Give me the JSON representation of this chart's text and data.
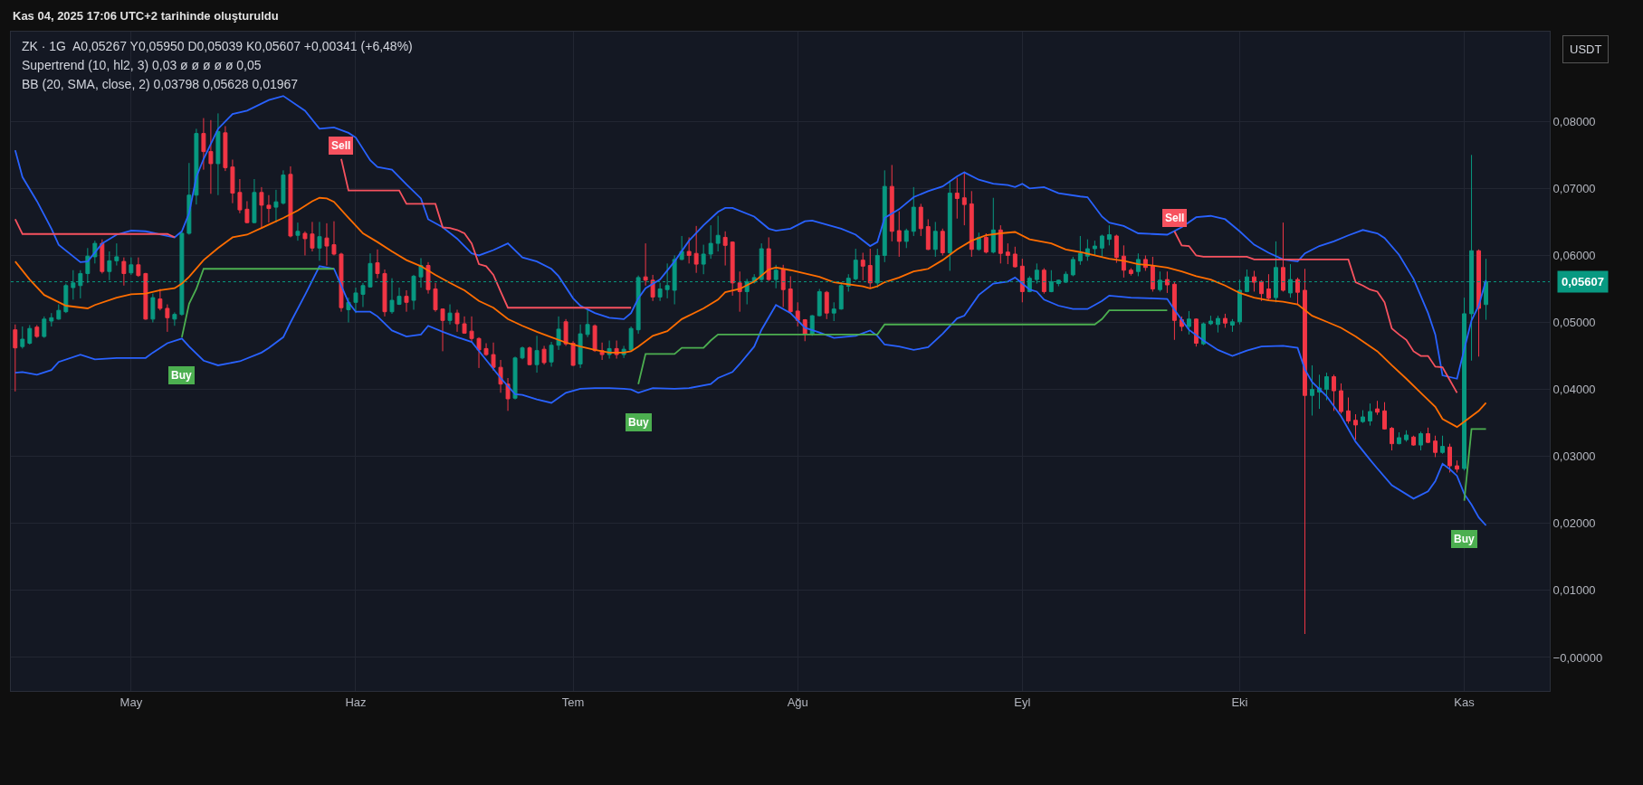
{
  "chart_data": {
    "type": "candlestick",
    "ylabel": "USDT",
    "annotations": [
      "Kas 04, 2025 17:06 UTC+2 tarihinde oluşturuldu",
      "ZK · 1G  A0,05267 Y0,05950 D0,05039 K0,05607 +0,00341 (+6,48%)",
      "Supertrend (10, hl2, 3) 0,03 ø ø ø ø ø 0,05",
      "BB (20, SMA, close, 2) 0,03798 0,05628 0,01967",
      {
        "text": "Buy",
        "y": 0.0478
      },
      {
        "text": "Sell",
        "y": 0.0744
      },
      {
        "text": "Buy",
        "y": 0.0408
      },
      {
        "text": "Sell",
        "y": 0.0636
      },
      {
        "text": "Buy",
        "y": 0.0234
      }
    ],
    "categories": [
      null,
      null,
      null,
      null,
      null,
      null,
      null,
      null,
      null,
      null,
      null,
      null,
      null,
      null,
      null,
      null,
      "May",
      null,
      null,
      null,
      null,
      null,
      null,
      null,
      null,
      null,
      null,
      null,
      null,
      null,
      null,
      null,
      null,
      null,
      null,
      null,
      null,
      null,
      null,
      null,
      null,
      null,
      null,
      null,
      null,
      null,
      null,
      "Haz",
      null,
      null,
      null,
      null,
      null,
      null,
      null,
      null,
      null,
      null,
      null,
      null,
      null,
      null,
      null,
      null,
      null,
      null,
      null,
      null,
      null,
      null,
      null,
      null,
      null,
      null,
      null,
      null,
      null,
      "Tem",
      null,
      null,
      null,
      null,
      null,
      null,
      null,
      null,
      null,
      null,
      null,
      null,
      null,
      null,
      null,
      null,
      null,
      null,
      null,
      null,
      null,
      null,
      null,
      null,
      null,
      null,
      null,
      null,
      null,
      null,
      "Ağu",
      null,
      null,
      null,
      null,
      null,
      null,
      null,
      null,
      null,
      null,
      null,
      null,
      null,
      null,
      null,
      null,
      null,
      null,
      null,
      null,
      null,
      null,
      null,
      null,
      null,
      null,
      null,
      null,
      null,
      null,
      "Eyl",
      null,
      null,
      null,
      null,
      null,
      null,
      null,
      null,
      null,
      null,
      null,
      null,
      null,
      null,
      null,
      null,
      null,
      null,
      null,
      null,
      null,
      null,
      null,
      null,
      null,
      null,
      null,
      null,
      null,
      "Eki",
      null,
      null,
      null,
      null,
      null,
      null,
      null,
      null,
      null,
      null,
      null,
      null,
      null,
      null,
      null,
      null,
      null,
      null,
      null,
      null,
      null,
      null,
      null,
      null,
      null,
      null,
      null,
      null,
      null,
      null,
      "Kas",
      null,
      null,
      null
    ],
    "ohlc": [
      [
        0.0489,
        0.0497,
        0.0397,
        0.0462
      ],
      [
        0.0464,
        0.0494,
        0.0461,
        0.0475
      ],
      [
        0.0469,
        0.0496,
        0.0467,
        0.0491
      ],
      [
        0.0493,
        0.0496,
        0.0477,
        0.0479
      ],
      [
        0.0479,
        0.0509,
        0.0477,
        0.0505
      ],
      [
        0.0502,
        0.0514,
        0.0494,
        0.0507
      ],
      [
        0.0505,
        0.0527,
        0.0504,
        0.0518
      ],
      [
        0.0516,
        0.0558,
        0.0514,
        0.0555
      ],
      [
        0.0552,
        0.0578,
        0.0534,
        0.0559
      ],
      [
        0.0555,
        0.0578,
        0.0536,
        0.0573
      ],
      [
        0.0573,
        0.0611,
        0.0559,
        0.0599
      ],
      [
        0.0598,
        0.0622,
        0.0588,
        0.0618
      ],
      [
        0.0618,
        0.0624,
        0.0573,
        0.0576
      ],
      [
        0.0576,
        0.0606,
        0.0563,
        0.0592
      ],
      [
        0.0592,
        0.0618,
        0.0585,
        0.0598
      ],
      [
        0.0591,
        0.0597,
        0.0555,
        0.0573
      ],
      [
        0.0574,
        0.0597,
        0.0571,
        0.0586
      ],
      [
        0.0586,
        0.0597,
        0.0568,
        0.057
      ],
      [
        0.0573,
        0.0574,
        0.0504,
        0.0505
      ],
      [
        0.0505,
        0.0543,
        0.05,
        0.0537
      ],
      [
        0.0535,
        0.055,
        0.0518,
        0.0521
      ],
      [
        0.0521,
        0.0527,
        0.0486,
        0.0507
      ],
      [
        0.0505,
        0.0515,
        0.0495,
        0.0512
      ],
      [
        0.0512,
        0.0636,
        0.051,
        0.0633
      ],
      [
        0.0633,
        0.0738,
        0.0631,
        0.069
      ],
      [
        0.069,
        0.0789,
        0.0676,
        0.0782
      ],
      [
        0.0782,
        0.0805,
        0.0728,
        0.0755
      ],
      [
        0.0755,
        0.0802,
        0.0692,
        0.0737
      ],
      [
        0.0737,
        0.0812,
        0.069,
        0.0785
      ],
      [
        0.0783,
        0.0793,
        0.0726,
        0.0731
      ],
      [
        0.0732,
        0.0743,
        0.0678,
        0.0693
      ],
      [
        0.0694,
        0.0714,
        0.0663,
        0.0668
      ],
      [
        0.0669,
        0.0681,
        0.0648,
        0.0649
      ],
      [
        0.0649,
        0.0714,
        0.0648,
        0.0694
      ],
      [
        0.0694,
        0.0702,
        0.064,
        0.0675
      ],
      [
        0.0675,
        0.069,
        0.0649,
        0.067
      ],
      [
        0.0672,
        0.0698,
        0.0649,
        0.068
      ],
      [
        0.0678,
        0.0727,
        0.0676,
        0.072
      ],
      [
        0.0721,
        0.0733,
        0.0627,
        0.0629
      ],
      [
        0.063,
        0.0649,
        0.0622,
        0.0636
      ],
      [
        0.0633,
        0.0636,
        0.06,
        0.0625
      ],
      [
        0.0632,
        0.065,
        0.0606,
        0.0611
      ],
      [
        0.0611,
        0.065,
        0.0592,
        0.0628
      ],
      [
        0.0626,
        0.0648,
        0.0585,
        0.0614
      ],
      [
        0.0616,
        0.0651,
        0.06,
        0.0602
      ],
      [
        0.0602,
        0.0604,
        0.0516,
        0.0522
      ],
      [
        0.0519,
        0.0537,
        0.05,
        0.053
      ],
      [
        0.053,
        0.0552,
        0.0514,
        0.0544
      ],
      [
        0.0542,
        0.0559,
        0.0523,
        0.0555
      ],
      [
        0.0553,
        0.0603,
        0.0552,
        0.0588
      ],
      [
        0.0589,
        0.0609,
        0.0566,
        0.0573
      ],
      [
        0.0573,
        0.0579,
        0.0509,
        0.0516
      ],
      [
        0.0516,
        0.0566,
        0.0513,
        0.0533
      ],
      [
        0.0527,
        0.0552,
        0.0526,
        0.0539
      ],
      [
        0.0539,
        0.0548,
        0.0516,
        0.053
      ],
      [
        0.0533,
        0.0571,
        0.0519,
        0.0569
      ],
      [
        0.0568,
        0.0596,
        0.0552,
        0.0585
      ],
      [
        0.0585,
        0.059,
        0.0543,
        0.0549
      ],
      [
        0.055,
        0.0559,
        0.0516,
        0.0519
      ],
      [
        0.052,
        0.0521,
        0.0457,
        0.0503
      ],
      [
        0.0503,
        0.0527,
        0.0497,
        0.0514
      ],
      [
        0.0514,
        0.0519,
        0.0486,
        0.0498
      ],
      [
        0.0498,
        0.0509,
        0.0483,
        0.0484
      ],
      [
        0.0487,
        0.0509,
        0.0471,
        0.0476
      ],
      [
        0.0476,
        0.0478,
        0.0432,
        0.0459
      ],
      [
        0.0461,
        0.0469,
        0.045,
        0.0452
      ],
      [
        0.0452,
        0.047,
        0.0428,
        0.0433
      ],
      [
        0.0433,
        0.0444,
        0.0395,
        0.0408
      ],
      [
        0.0408,
        0.0417,
        0.0368,
        0.0386
      ],
      [
        0.0387,
        0.0449,
        0.0385,
        0.0447
      ],
      [
        0.0447,
        0.0464,
        0.0445,
        0.0462
      ],
      [
        0.0462,
        0.0464,
        0.0436,
        0.0437
      ],
      [
        0.0437,
        0.048,
        0.0425,
        0.0458
      ],
      [
        0.046,
        0.0465,
        0.0437,
        0.044
      ],
      [
        0.0441,
        0.0471,
        0.0434,
        0.0466
      ],
      [
        0.0466,
        0.0509,
        0.0459,
        0.049
      ],
      [
        0.0501,
        0.0505,
        0.0465,
        0.0468
      ],
      [
        0.0469,
        0.0472,
        0.0435,
        0.0436
      ],
      [
        0.0438,
        0.0497,
        0.0432,
        0.0483
      ],
      [
        0.0482,
        0.0519,
        0.0478,
        0.0497
      ],
      [
        0.0495,
        0.0497,
        0.0456,
        0.0458
      ],
      [
        0.0458,
        0.047,
        0.0444,
        0.0452
      ],
      [
        0.0452,
        0.0473,
        0.0446,
        0.0461
      ],
      [
        0.0461,
        0.0473,
        0.0446,
        0.0452
      ],
      [
        0.0452,
        0.0465,
        0.0447,
        0.046
      ],
      [
        0.0459,
        0.0494,
        0.0458,
        0.0491
      ],
      [
        0.0489,
        0.057,
        0.0483,
        0.0567
      ],
      [
        0.0568,
        0.0618,
        0.0555,
        0.0563
      ],
      [
        0.0563,
        0.0571,
        0.0532,
        0.0538
      ],
      [
        0.0538,
        0.0559,
        0.0532,
        0.055
      ],
      [
        0.0549,
        0.0588,
        0.0536,
        0.0555
      ],
      [
        0.0548,
        0.06,
        0.0527,
        0.0594
      ],
      [
        0.0594,
        0.0629,
        0.0593,
        0.0606
      ],
      [
        0.0606,
        0.0627,
        0.0588,
        0.06
      ],
      [
        0.0603,
        0.0644,
        0.0574,
        0.0587
      ],
      [
        0.0587,
        0.0616,
        0.0572,
        0.0602
      ],
      [
        0.0602,
        0.0645,
        0.0595,
        0.0618
      ],
      [
        0.0618,
        0.0659,
        0.0606,
        0.063
      ],
      [
        0.0627,
        0.0636,
        0.0585,
        0.0615
      ],
      [
        0.062,
        0.0621,
        0.054,
        0.0559
      ],
      [
        0.0559,
        0.0576,
        0.0516,
        0.0546
      ],
      [
        0.0546,
        0.0565,
        0.0527,
        0.0561
      ],
      [
        0.056,
        0.0572,
        0.0558,
        0.0567
      ],
      [
        0.0564,
        0.0618,
        0.0562,
        0.061
      ],
      [
        0.061,
        0.0627,
        0.0562,
        0.0564
      ],
      [
        0.0564,
        0.0586,
        0.0551,
        0.0578
      ],
      [
        0.0579,
        0.0586,
        0.0523,
        0.0549
      ],
      [
        0.055,
        0.0569,
        0.0514,
        0.0516
      ],
      [
        0.0517,
        0.053,
        0.0494,
        0.0503
      ],
      [
        0.0504,
        0.0505,
        0.0472,
        0.0483
      ],
      [
        0.0483,
        0.0511,
        0.048,
        0.051
      ],
      [
        0.051,
        0.055,
        0.0509,
        0.0546
      ],
      [
        0.0545,
        0.0547,
        0.0505,
        0.0514
      ],
      [
        0.0514,
        0.053,
        0.0502,
        0.052
      ],
      [
        0.052,
        0.056,
        0.0519,
        0.0555
      ],
      [
        0.0554,
        0.0572,
        0.0546,
        0.0566
      ],
      [
        0.0565,
        0.061,
        0.0563,
        0.0593
      ],
      [
        0.0593,
        0.0604,
        0.0563,
        0.0584
      ],
      [
        0.0585,
        0.061,
        0.0551,
        0.0559
      ],
      [
        0.0559,
        0.061,
        0.0552,
        0.06
      ],
      [
        0.06,
        0.0727,
        0.059,
        0.0703
      ],
      [
        0.0703,
        0.0735,
        0.0621,
        0.0636
      ],
      [
        0.0637,
        0.0666,
        0.0598,
        0.0621
      ],
      [
        0.0621,
        0.064,
        0.0611,
        0.0637
      ],
      [
        0.0636,
        0.0702,
        0.0629,
        0.0672
      ],
      [
        0.0672,
        0.0677,
        0.0629,
        0.064
      ],
      [
        0.0643,
        0.0654,
        0.0608,
        0.0609
      ],
      [
        0.0609,
        0.065,
        0.0598,
        0.0636
      ],
      [
        0.0636,
        0.064,
        0.06,
        0.0604
      ],
      [
        0.0604,
        0.0712,
        0.0577,
        0.0693
      ],
      [
        0.0693,
        0.0716,
        0.0655,
        0.0685
      ],
      [
        0.0686,
        0.0725,
        0.0645,
        0.0676
      ],
      [
        0.0677,
        0.0696,
        0.0598,
        0.0609
      ],
      [
        0.0609,
        0.0634,
        0.0607,
        0.0627
      ],
      [
        0.0627,
        0.0633,
        0.0603,
        0.0605
      ],
      [
        0.0605,
        0.0686,
        0.0603,
        0.0638
      ],
      [
        0.0638,
        0.0645,
        0.0588,
        0.0603
      ],
      [
        0.0605,
        0.0618,
        0.0587,
        0.06
      ],
      [
        0.0602,
        0.0613,
        0.0582,
        0.0583
      ],
      [
        0.0584,
        0.0595,
        0.053,
        0.0546
      ],
      [
        0.0546,
        0.0569,
        0.0545,
        0.0566
      ],
      [
        0.0564,
        0.0588,
        0.0558,
        0.0578
      ],
      [
        0.0578,
        0.0581,
        0.0543,
        0.0546
      ],
      [
        0.0546,
        0.0578,
        0.0545,
        0.0561
      ],
      [
        0.0558,
        0.0564,
        0.0554,
        0.0563
      ],
      [
        0.056,
        0.0576,
        0.0559,
        0.0572
      ],
      [
        0.0571,
        0.0598,
        0.0569,
        0.0594
      ],
      [
        0.0592,
        0.0629,
        0.0586,
        0.0603
      ],
      [
        0.0599,
        0.0624,
        0.0592,
        0.061
      ],
      [
        0.061,
        0.0622,
        0.06,
        0.0614
      ],
      [
        0.0611,
        0.0631,
        0.0598,
        0.0629
      ],
      [
        0.0624,
        0.0645,
        0.0615,
        0.0631
      ],
      [
        0.0629,
        0.0631,
        0.0589,
        0.0597
      ],
      [
        0.0599,
        0.0615,
        0.0567,
        0.0578
      ],
      [
        0.0578,
        0.0581,
        0.057,
        0.0573
      ],
      [
        0.0576,
        0.0603,
        0.0569,
        0.0594
      ],
      [
        0.0594,
        0.06,
        0.0577,
        0.0582
      ],
      [
        0.0584,
        0.0598,
        0.0546,
        0.055
      ],
      [
        0.0549,
        0.0576,
        0.0546,
        0.0563
      ],
      [
        0.0564,
        0.0576,
        0.0544,
        0.0556
      ],
      [
        0.0557,
        0.0561,
        0.0474,
        0.0503
      ],
      [
        0.0504,
        0.0509,
        0.0487,
        0.0494
      ],
      [
        0.0494,
        0.0517,
        0.0482,
        0.0505
      ],
      [
        0.0505,
        0.0506,
        0.0464,
        0.0469
      ],
      [
        0.0468,
        0.05,
        0.0466,
        0.0498
      ],
      [
        0.0498,
        0.051,
        0.0496,
        0.0502
      ],
      [
        0.0497,
        0.051,
        0.0485,
        0.0506
      ],
      [
        0.0506,
        0.0513,
        0.0492,
        0.0499
      ],
      [
        0.0496,
        0.0505,
        0.0486,
        0.0501
      ],
      [
        0.0501,
        0.0564,
        0.0497,
        0.0548
      ],
      [
        0.0546,
        0.0579,
        0.0545,
        0.0568
      ],
      [
        0.0568,
        0.0577,
        0.0546,
        0.056
      ],
      [
        0.0561,
        0.0563,
        0.0532,
        0.0543
      ],
      [
        0.055,
        0.0572,
        0.0534,
        0.0536
      ],
      [
        0.0537,
        0.0621,
        0.053,
        0.0582
      ],
      [
        0.0582,
        0.0649,
        0.0546,
        0.0548
      ],
      [
        0.0544,
        0.0587,
        0.0537,
        0.0564
      ],
      [
        0.0564,
        0.0567,
        0.0526,
        0.0545
      ],
      [
        0.0548,
        0.058,
        0.0035,
        0.0391
      ],
      [
        0.0391,
        0.0436,
        0.0361,
        0.04
      ],
      [
        0.0396,
        0.0422,
        0.0371,
        0.0402
      ],
      [
        0.04,
        0.0425,
        0.0384,
        0.0419
      ],
      [
        0.0419,
        0.0422,
        0.0368,
        0.0398
      ],
      [
        0.0398,
        0.0409,
        0.0364,
        0.0367
      ],
      [
        0.0368,
        0.0388,
        0.0349,
        0.0353
      ],
      [
        0.0354,
        0.0363,
        0.0325,
        0.0347
      ],
      [
        0.0352,
        0.0369,
        0.035,
        0.0359
      ],
      [
        0.0353,
        0.0379,
        0.0346,
        0.0367
      ],
      [
        0.0371,
        0.0383,
        0.0362,
        0.0366
      ],
      [
        0.0368,
        0.0381,
        0.034,
        0.0341
      ],
      [
        0.0342,
        0.0344,
        0.0309,
        0.0319
      ],
      [
        0.0319,
        0.0336,
        0.0318,
        0.0328
      ],
      [
        0.0325,
        0.0339,
        0.0322,
        0.0332
      ],
      [
        0.0329,
        0.0331,
        0.0316,
        0.0317
      ],
      [
        0.0317,
        0.0337,
        0.0309,
        0.0334
      ],
      [
        0.0334,
        0.0343,
        0.032,
        0.0321
      ],
      [
        0.0323,
        0.0331,
        0.0299,
        0.0306
      ],
      [
        0.0306,
        0.0331,
        0.0304,
        0.0315
      ],
      [
        0.0314,
        0.0319,
        0.0276,
        0.0286
      ],
      [
        0.0286,
        0.0294,
        0.0276,
        0.0281
      ],
      [
        0.0282,
        0.0537,
        0.0279,
        0.0513
      ],
      [
        0.0513,
        0.075,
        0.0443,
        0.0607
      ],
      [
        0.0607,
        0.0609,
        0.0449,
        0.0521
      ],
      [
        0.05267,
        0.0595,
        0.05039,
        0.05607
      ]
    ],
    "series": [
      {
        "type": "line",
        "color": "#2962ff",
        "values": [
          0.0757,
          0.0717,
          null,
          0.0681,
          null,
          0.064,
          0.0616,
          null,
          null,
          0.059,
          0.0591,
          null,
          0.0618,
          null,
          0.0631,
          null,
          0.0637,
          null,
          0.0636,
          null,
          null,
          0.0629,
          0.0627,
          0.0636,
          0.0663,
          0.0717,
          0.0744,
          null,
          0.0789,
          null,
          0.0811,
          null,
          0.0816,
          null,
          null,
          0.0832,
          null,
          0.0838,
          null,
          null,
          0.0816,
          null,
          0.0789,
          null,
          0.0791,
          null,
          0.0783,
          0.0776,
          null,
          0.0742,
          0.0732,
          null,
          0.0728,
          null,
          0.0706,
          null,
          0.0685,
          0.0654,
          null,
          0.0642,
          null,
          0.0625,
          null,
          0.0603,
          0.06,
          null,
          0.0608,
          null,
          0.0618,
          null,
          0.0597,
          null,
          0.0591,
          null,
          0.058,
          0.0569,
          null,
          0.0536,
          0.0525,
          null,
          0.0514,
          null,
          0.0507,
          null,
          0.0505,
          0.0514,
          0.0536,
          0.0551,
          null,
          0.0564,
          null,
          0.0591,
          null,
          0.0622,
          null,
          0.0645,
          null,
          0.0665,
          0.0671,
          0.0671,
          null,
          null,
          0.0658,
          null,
          0.064,
          0.0637,
          null,
          0.064,
          null,
          0.0651,
          0.0652,
          null,
          null,
          null,
          0.064,
          null,
          0.0631,
          null,
          0.0614,
          0.062,
          0.0656,
          null,
          0.0669,
          null,
          0.0687,
          null,
          0.0696,
          null,
          0.0703,
          null,
          0.0718,
          0.0724,
          null,
          0.0713,
          null,
          0.0707,
          null,
          0.0705,
          0.0702,
          0.0707,
          0.07,
          null,
          0.0702,
          null,
          0.0693,
          null,
          null,
          0.0688,
          0.0687,
          null,
          0.0658,
          0.0649,
          null,
          0.0644,
          null,
          0.0633,
          null,
          0.0632,
          null,
          0.0631,
          null,
          0.0642,
          null,
          0.0657,
          null,
          0.0659,
          null,
          0.0654,
          null,
          0.0636,
          null,
          0.0616,
          null,
          0.0604,
          null,
          0.0594,
          null,
          0.0591,
          0.0603,
          null,
          0.0614,
          null,
          0.0621,
          null,
          0.063,
          null,
          0.0638,
          null,
          0.0633,
          0.0626,
          null,
          0.0601,
          null,
          0.0565,
          null,
          0.0514,
          0.0482,
          0.0421,
          null,
          0.0416,
          0.046,
          0.0503,
          0.0525,
          0.0563
        ]
      },
      {
        "type": "line",
        "color": "#ff6d00",
        "values": [
          0.0591,
          null,
          0.0564,
          null,
          0.0541,
          null,
          null,
          0.0525,
          null,
          null,
          0.0521,
          0.0526,
          null,
          null,
          0.0537,
          null,
          0.0542,
          null,
          0.0543,
          null,
          0.0548,
          null,
          0.0551,
          0.0558,
          0.0568,
          null,
          0.0593,
          null,
          0.0611,
          null,
          0.0627,
          null,
          0.0631,
          null,
          0.0641,
          0.0646,
          null,
          0.0656,
          null,
          0.0667,
          null,
          0.0681,
          0.0686,
          0.0685,
          0.068,
          null,
          0.0656,
          null,
          0.0633,
          null,
          0.062,
          null,
          0.0606,
          null,
          0.0593,
          null,
          0.0584,
          null,
          0.0571,
          null,
          0.0559,
          null,
          0.0548,
          null,
          0.0532,
          null,
          0.0522,
          null,
          0.0505,
          null,
          0.0495,
          null,
          0.0486,
          null,
          0.0478,
          null,
          0.047,
          null,
          0.0464,
          null,
          0.0459,
          null,
          0.0455,
          null,
          0.0455,
          0.0457,
          0.0464,
          null,
          0.048,
          null,
          0.0487,
          null,
          0.0505,
          null,
          null,
          0.0521,
          null,
          0.0534,
          0.0545,
          null,
          0.055,
          null,
          0.0561,
          null,
          0.0579,
          0.0582,
          null,
          0.0578,
          null,
          0.0573,
          null,
          0.0568,
          null,
          0.056,
          null,
          0.0557,
          null,
          0.0554,
          0.0551,
          0.0554,
          0.056,
          null,
          0.0567,
          null,
          0.0576,
          null,
          0.058,
          null,
          0.0593,
          null,
          0.0609,
          null,
          0.0622,
          null,
          0.063,
          null,
          0.0633,
          null,
          0.0635,
          null,
          0.0624,
          null,
          null,
          0.0618,
          null,
          0.0609,
          null,
          0.0605,
          null,
          0.06,
          null,
          0.0595,
          null,
          0.0592,
          null,
          0.0587,
          null,
          0.0585,
          null,
          0.0582,
          null,
          0.0576,
          null,
          0.0569,
          null,
          0.0564,
          null,
          0.0555,
          null,
          0.0544,
          null,
          0.0537,
          null,
          0.0533,
          null,
          0.0531,
          null,
          0.0527,
          null,
          0.051,
          null,
          0.0501,
          null,
          0.0492,
          null,
          0.0479,
          null,
          null,
          0.0457,
          null,
          0.0436,
          null,
          0.0416,
          null,
          0.0395,
          null,
          0.0374,
          0.0356,
          null,
          0.0344,
          0.0352,
          0.036,
          0.0368,
          0.038
        ]
      },
      {
        "type": "line",
        "color": "#2962ff",
        "values": [
          0.0425,
          0.0426,
          null,
          0.0422,
          null,
          0.0429,
          0.0441,
          null,
          null,
          0.0452,
          null,
          0.0445,
          null,
          null,
          0.0447,
          null,
          null,
          null,
          0.0447,
          0.0455,
          null,
          0.0469,
          null,
          0.0476,
          0.0464,
          null,
          0.0443,
          null,
          0.0436,
          null,
          null,
          0.0442,
          null,
          null,
          0.0455,
          0.0462,
          null,
          0.0478,
          0.05,
          null,
          0.0541,
          null,
          0.0584,
          null,
          0.058,
          null,
          0.053,
          0.0516,
          null,
          0.0516,
          0.0509,
          null,
          0.0488,
          null,
          0.0479,
          null,
          0.0482,
          0.0495,
          null,
          0.0486,
          null,
          0.0478,
          null,
          0.0471,
          null,
          0.0444,
          null,
          0.0417,
          null,
          0.0393,
          0.0392,
          null,
          0.0385,
          null,
          0.038,
          null,
          0.0395,
          null,
          0.0401,
          null,
          0.0402,
          null,
          0.0402,
          null,
          0.0401,
          0.04,
          0.0395,
          null,
          0.0402,
          null,
          null,
          0.0401,
          null,
          0.0402,
          null,
          null,
          0.0408,
          0.0417,
          null,
          0.0426,
          0.0438,
          null,
          0.0464,
          0.0489,
          null,
          0.0526,
          null,
          0.0514,
          null,
          0.0492,
          null,
          0.0485,
          null,
          0.0477,
          null,
          null,
          0.048,
          null,
          0.0488,
          0.048,
          0.0467,
          null,
          0.0464,
          null,
          0.0459,
          null,
          0.0463,
          null,
          0.0483,
          null,
          0.0506,
          0.051,
          null,
          0.0541,
          null,
          0.0558,
          null,
          0.0561,
          0.0567,
          0.0558,
          0.0549,
          0.0546,
          0.0534,
          null,
          0.0525,
          null,
          0.052,
          null,
          0.052,
          null,
          0.0532,
          0.054,
          null,
          null,
          0.0537,
          null,
          null,
          0.0536,
          null,
          0.0535,
          0.0519,
          null,
          0.0489,
          null,
          0.0473,
          null,
          0.0459,
          null,
          0.045,
          null,
          0.0458,
          null,
          0.0464,
          null,
          null,
          0.0465,
          null,
          0.0462,
          0.043,
          0.0411,
          null,
          0.039,
          null,
          0.036,
          null,
          0.0322,
          null,
          0.0295,
          0.0282,
          null,
          0.0257,
          null,
          null,
          0.0237,
          null,
          0.0248,
          0.0263,
          0.0289,
          0.0281,
          0.0271,
          0.0244,
          0.0228,
          0.0209,
          0.0197
        ]
      },
      {
        "type": "line",
        "color": "#f7525f",
        "values": [
          0.0654,
          0.0632,
          0.0632,
          0.0632,
          0.0632,
          0.0632,
          0.0632,
          0.0632,
          0.0632,
          0.0632,
          0.0632,
          0.0632,
          0.0632,
          0.0632,
          0.0632,
          0.0632,
          0.0632,
          0.0632,
          0.0632,
          0.0632,
          0.0632,
          0.0632,
          0.0627,
          null,
          null,
          null,
          null,
          null,
          null,
          null,
          null,
          null,
          null,
          null,
          null,
          null,
          null,
          null,
          null,
          null,
          null,
          null,
          null,
          null,
          null,
          0.0744,
          0.0697,
          0.0697,
          0.0697,
          0.0697,
          0.0697,
          0.0697,
          0.0697,
          0.0697,
          0.0677,
          0.0677,
          0.0677,
          0.0677,
          0.0677,
          0.0642,
          0.0641,
          0.0638,
          0.0633,
          0.0618,
          0.0587,
          0.0584,
          0.0571,
          0.0546,
          0.0522,
          0.0522,
          0.0522,
          0.0522,
          0.0522,
          0.0522,
          0.0522,
          0.0522,
          0.0522,
          0.0522,
          0.0522,
          0.0522,
          0.0522,
          0.0522,
          0.0522,
          0.0522,
          0.0522,
          0.0522,
          null,
          null,
          null,
          null,
          null,
          null,
          null,
          null,
          null,
          null,
          null,
          null,
          null,
          null,
          null,
          null,
          null,
          null,
          null,
          null,
          null,
          null,
          null,
          null,
          null,
          null,
          null,
          null,
          null,
          null,
          null,
          null,
          null,
          null,
          null,
          null,
          null,
          null,
          null,
          null,
          null,
          null,
          null,
          null,
          null,
          null,
          null,
          null,
          null,
          null,
          null,
          null,
          null,
          null,
          null,
          null,
          null,
          null,
          null,
          null,
          null,
          null,
          null,
          null,
          null,
          null,
          null,
          null,
          null,
          null,
          null,
          null,
          null,
          null,
          0.0636,
          0.0615,
          0.0614,
          0.06,
          0.0598,
          0.0598,
          0.0598,
          0.0598,
          0.0598,
          0.0598,
          0.0598,
          0.0594,
          0.0594,
          0.0594,
          0.0594,
          0.0594,
          0.0594,
          0.0594,
          0.0594,
          0.0594,
          0.0594,
          0.0594,
          0.0594,
          0.0594,
          0.0594,
          0.056,
          0.0555,
          0.0549,
          0.0546,
          0.053,
          0.0491,
          0.0482,
          0.0474,
          0.0457,
          0.045,
          0.045,
          0.0434,
          0.0433,
          0.0414,
          0.0395,
          null,
          null,
          null,
          null
        ]
      },
      {
        "type": "line",
        "color": "#4caf50",
        "values": [
          null,
          null,
          null,
          null,
          null,
          null,
          null,
          null,
          null,
          null,
          null,
          null,
          null,
          null,
          null,
          null,
          null,
          null,
          null,
          null,
          null,
          null,
          null,
          0.0478,
          0.0528,
          0.055,
          0.058,
          0.058,
          0.058,
          0.058,
          0.058,
          0.058,
          0.058,
          0.058,
          0.058,
          0.058,
          0.058,
          0.058,
          0.058,
          0.058,
          0.058,
          0.058,
          0.058,
          0.058,
          0.058,
          null,
          null,
          null,
          null,
          null,
          null,
          null,
          null,
          null,
          null,
          null,
          null,
          null,
          null,
          null,
          null,
          null,
          null,
          null,
          null,
          null,
          null,
          null,
          null,
          null,
          null,
          null,
          null,
          null,
          null,
          null,
          null,
          null,
          null,
          null,
          null,
          null,
          null,
          null,
          null,
          null,
          0.0408,
          0.0453,
          0.0453,
          0.0453,
          0.0453,
          0.0453,
          0.0462,
          0.0462,
          0.0462,
          0.0462,
          0.0473,
          0.0482,
          0.0482,
          0.0482,
          0.0482,
          0.0482,
          0.0482,
          0.0482,
          0.0482,
          0.0482,
          0.0482,
          0.0482,
          0.0482,
          0.0482,
          0.0482,
          0.0482,
          0.0482,
          0.0482,
          0.0482,
          0.0482,
          0.0482,
          0.0482,
          0.0482,
          0.0482,
          0.0497,
          0.0497,
          0.0497,
          0.0497,
          0.0497,
          0.0497,
          0.0497,
          0.0497,
          0.0497,
          0.0497,
          0.0497,
          0.0497,
          0.0497,
          0.0497,
          0.0497,
          0.0497,
          0.0497,
          0.0497,
          0.0497,
          0.0497,
          0.0497,
          0.0497,
          0.0497,
          0.0497,
          0.0497,
          0.0497,
          0.0497,
          0.0497,
          0.0497,
          0.0497,
          0.0505,
          0.0518,
          0.0518,
          0.0518,
          0.0518,
          0.0518,
          0.0518,
          0.0518,
          0.0518,
          0.0518,
          null,
          null,
          null,
          null,
          null,
          null,
          null,
          null,
          null,
          null,
          null,
          null,
          null,
          null,
          null,
          null,
          null,
          null,
          null,
          null,
          null,
          null,
          null,
          null,
          null,
          null,
          null,
          null,
          null,
          null,
          null,
          null,
          null,
          null,
          null,
          null,
          null,
          null,
          null,
          null,
          0.0234,
          0.0341,
          0.0341,
          0.0341
        ]
      }
    ],
    "ref_lines": [
      {
        "axis": "y",
        "value": 0.05607,
        "label": "0,05607",
        "color": "#089981",
        "line_style": "dotted"
      }
    ],
    "ylim": [
      -0.005,
      0.0934
    ],
    "yticks": [
      {
        "value": 0,
        "label": "−0,00000"
      },
      {
        "value": 0.01,
        "label": "0,01000"
      },
      {
        "value": 0.02,
        "label": "0,02000"
      },
      {
        "value": 0.03,
        "label": "0,03000"
      },
      {
        "value": 0.04,
        "label": "0,04000"
      },
      {
        "value": 0.05,
        "label": "0,05000"
      },
      {
        "value": 0.06,
        "label": "0,06000"
      },
      {
        "value": 0.07,
        "label": "0,07000"
      },
      {
        "value": 0.08,
        "label": "0,08000"
      }
    ],
    "grid": true
  }
}
